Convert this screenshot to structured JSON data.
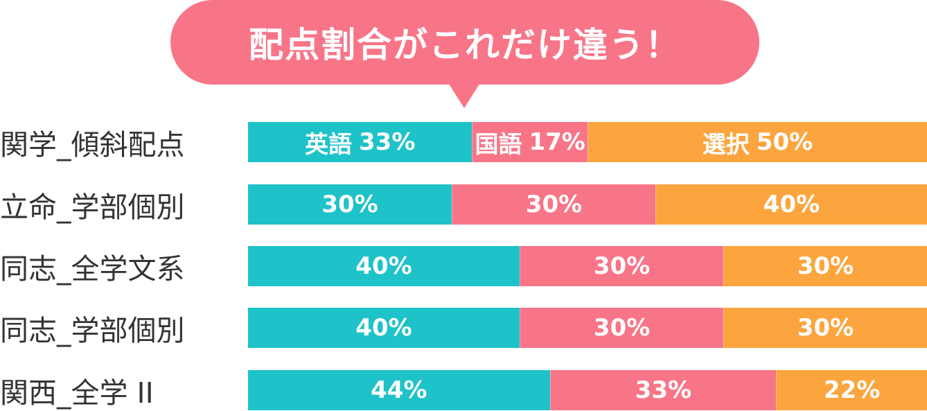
{
  "title": "配点割合がこれだけ違う！",
  "colors": {
    "english": "#1ec2c9",
    "japanese": "#f87588",
    "elective": "#fca53f",
    "bubble": "#f87588"
  },
  "chart_data": {
    "type": "bar",
    "orientation": "horizontal",
    "stacked": true,
    "normalized": true,
    "title": "配点割合がこれだけ違う！",
    "categories": [
      "関学_傾斜配点",
      "立命_学部個別",
      "同志_全学文系",
      "同志_学部個別",
      "関西_全学 II"
    ],
    "series": [
      {
        "name": "英語",
        "color": "#1ec2c9",
        "values": [
          33,
          30,
          40,
          40,
          44
        ]
      },
      {
        "name": "国語",
        "color": "#f87588",
        "values": [
          17,
          30,
          30,
          30,
          33
        ]
      },
      {
        "name": "選択",
        "color": "#fca53f",
        "values": [
          50,
          40,
          30,
          30,
          22
        ]
      }
    ],
    "unit": "%",
    "xlim": [
      0,
      100
    ],
    "grid": false,
    "legend": "inline-first-row"
  }
}
